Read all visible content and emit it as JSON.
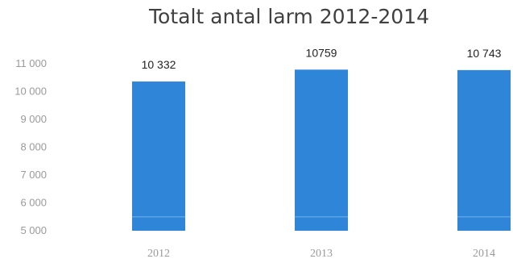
{
  "chart_data": {
    "type": "bar",
    "title": "Totalt antal larm 2012-2014",
    "xlabel": "",
    "ylabel": "",
    "categories": [
      "2012",
      "2013",
      "2014"
    ],
    "values": [
      10332,
      10759,
      10743
    ],
    "data_labels": [
      "10 332",
      "10759",
      "10 743"
    ],
    "yticks": [
      5000,
      6000,
      7000,
      8000,
      9000,
      10000,
      11000
    ],
    "ytick_labels": [
      "5 000",
      "6 000",
      "7 000",
      "8 000",
      "9 000",
      "10 000",
      "11 000"
    ],
    "ylim": [
      5000,
      11000
    ],
    "grid": false,
    "legend": "none",
    "colors": {
      "bar": "#2f86d8",
      "title": "#404040",
      "tick": "#9a9a9a",
      "data_label": "#222222"
    }
  }
}
